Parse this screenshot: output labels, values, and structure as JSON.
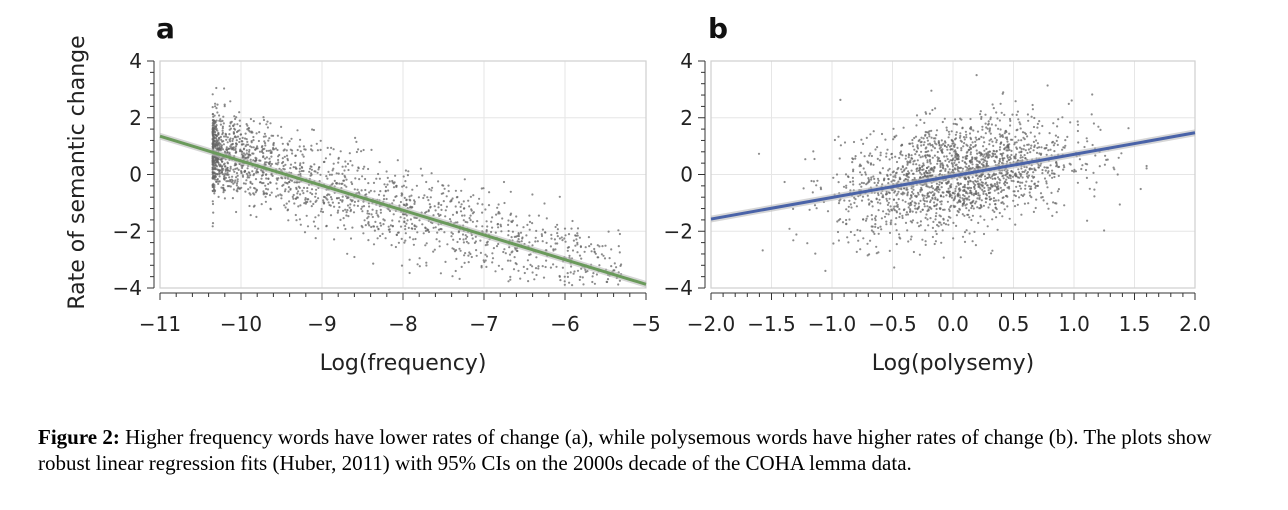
{
  "chart_data": [
    {
      "type": "scatter",
      "panel_label": "a",
      "xlabel": "Log(frequency)",
      "ylabel": "Rate of semantic change",
      "xlim": [
        -11,
        -5
      ],
      "ylim": [
        -4,
        4
      ],
      "xticks": [
        "−11",
        "−10",
        "−9",
        "−8",
        "−7",
        "−6",
        "−5"
      ],
      "yticks": [
        "4",
        "2",
        "0",
        "−2",
        "−4"
      ],
      "grid": true,
      "fit": {
        "slope": -0.87,
        "intercept": -8.22,
        "color": "#6a9a5b"
      },
      "points": {
        "count": 1900,
        "color": "#666666",
        "x_range": [
          -10.35,
          -5.3
        ]
      }
    },
    {
      "type": "scatter",
      "panel_label": "b",
      "xlabel": "Log(polysemy)",
      "ylabel": "",
      "xlim": [
        -2.0,
        2.0
      ],
      "ylim": [
        -4,
        4
      ],
      "xticks": [
        "−2.0",
        "−1.5",
        "−1.0",
        "−0.5",
        "0.0",
        "0.5",
        "1.0",
        "1.5",
        "2.0"
      ],
      "yticks": [
        "4",
        "2",
        "0",
        "−2",
        "−4"
      ],
      "grid": true,
      "fit": {
        "slope": 0.76,
        "intercept": -0.05,
        "color": "#4a63a8"
      },
      "points": {
        "count": 1900,
        "color": "#666666",
        "x_range": [
          -1.8,
          1.6
        ]
      }
    }
  ],
  "caption": {
    "label": "Figure 2:",
    "text": "Higher frequency words have lower rates of change (a), while polysemous words have higher rates of change (b). The plots show robust linear regression fits (Huber, 2011) with 95% CIs on the 2000s decade of the COHA lemma data."
  }
}
